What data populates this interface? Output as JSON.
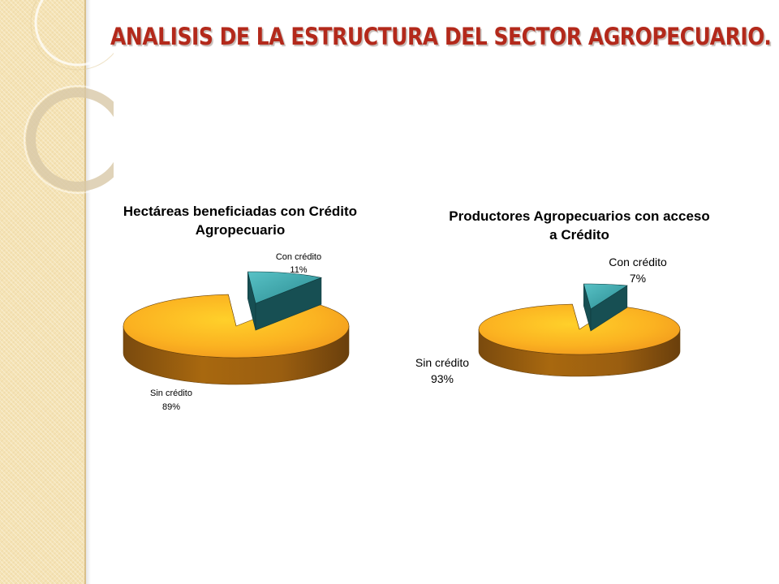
{
  "slide": {
    "title": "ANALISIS  DE LA ESTRUCTURA DEL SECTOR AGROPECUARIO.",
    "colors": {
      "title": "#b3291b",
      "sin_credito": "#f6a21c",
      "con_credito": "#2d8f95",
      "band": "#f5e3b5"
    }
  },
  "chart_data": [
    {
      "type": "pie",
      "title_lines": [
        "Hectáreas beneficiadas con Crédito",
        "Agropecuario"
      ],
      "slices": [
        {
          "label": "Con crédito",
          "value": 11,
          "value_label": "11%",
          "color": "#2d8f95",
          "exploded": true
        },
        {
          "label": "Sin crédito",
          "value": 89,
          "value_label": "89%",
          "color": "#f6a21c",
          "exploded": false
        }
      ]
    },
    {
      "type": "pie",
      "title_lines": [
        "Productores Agropecuarios con acceso",
        "a Crédito"
      ],
      "slices": [
        {
          "label": "Con crédito",
          "value": 7,
          "value_label": "7%",
          "color": "#2d8f95",
          "exploded": true
        },
        {
          "label": "Sin crédito",
          "value": 93,
          "value_label": "93%",
          "color": "#f6a21c",
          "exploded": false
        }
      ]
    }
  ]
}
